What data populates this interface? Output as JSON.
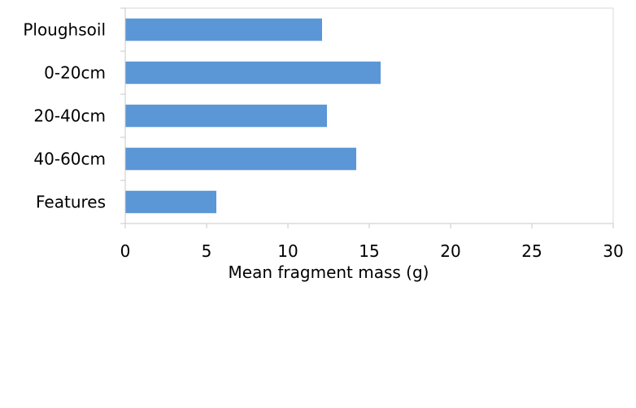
{
  "chart_data": {
    "type": "bar",
    "orientation": "horizontal",
    "categories": [
      "Ploughsoil",
      "0-20cm",
      "20-40cm",
      "40-60cm",
      "Features"
    ],
    "values": [
      12.1,
      15.7,
      12.4,
      14.2,
      5.6
    ],
    "xlabel": "Mean fragment mass (g)",
    "ylabel": "",
    "xlim": [
      0,
      30
    ],
    "xticks": [
      "0",
      "5",
      "10",
      "15",
      "20",
      "25",
      "30"
    ],
    "grid": false,
    "bar_color": "#5b96d6",
    "axis_color": "#c8c8c8"
  }
}
